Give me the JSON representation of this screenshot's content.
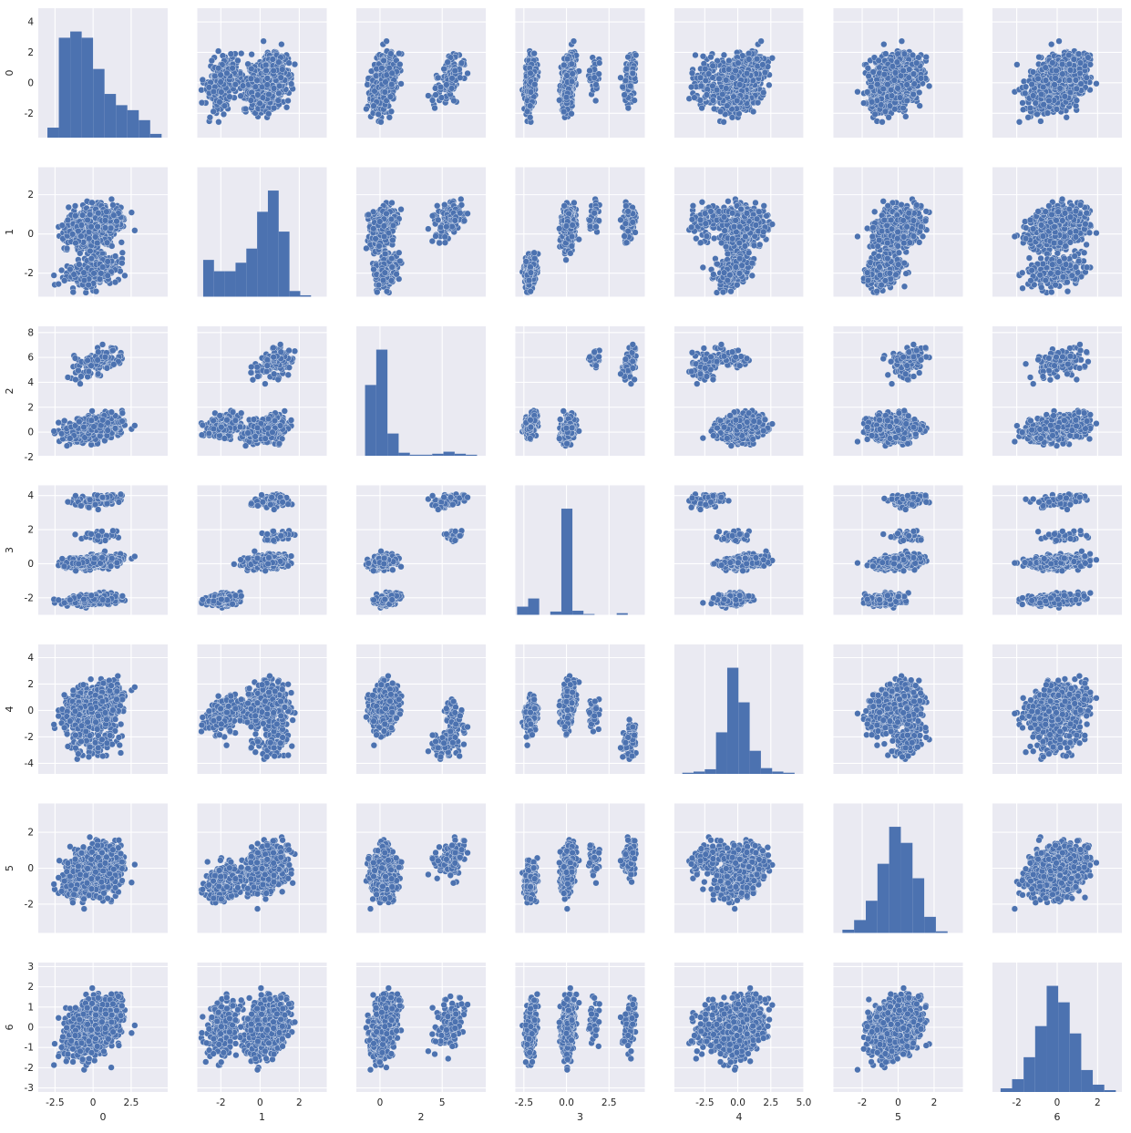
{
  "chart_data": {
    "type": "scatter",
    "subtype": "pairplot",
    "title": "",
    "variables": [
      "0",
      "1",
      "2",
      "3",
      "4",
      "5",
      "6"
    ],
    "marker_color": "#4c72b0",
    "background_color": "#eaeaf2",
    "grid": true,
    "diagonal": "histogram",
    "axes": [
      {
        "label": "0",
        "range": [
          -3.6,
          4.9
        ],
        "x_ticks": [
          "-2.5",
          "0",
          "2.5"
        ],
        "y_ticks": [
          "-2",
          "0",
          "2",
          "4"
        ]
      },
      {
        "label": "1",
        "range": [
          -3.2,
          3.4
        ],
        "x_ticks": [
          "-2",
          "0",
          "2"
        ],
        "y_ticks": [
          "-2",
          "0",
          "2"
        ]
      },
      {
        "label": "2",
        "range": [
          -1.9,
          8.5
        ],
        "x_ticks": [
          "0",
          "5"
        ],
        "y_ticks": [
          "-2",
          "0",
          "2",
          "4",
          "6",
          "8"
        ]
      },
      {
        "label": "3",
        "range": [
          -3.0,
          4.6
        ],
        "x_ticks": [
          "-2.5",
          "0.0",
          "2.5"
        ],
        "y_ticks": [
          "-2",
          "0",
          "2",
          "4"
        ]
      },
      {
        "label": "4",
        "range": [
          -4.8,
          5.0
        ],
        "x_ticks": [
          "-2.5",
          "0.0",
          "2.5",
          "5.0"
        ],
        "y_ticks": [
          "-4",
          "-2",
          "0",
          "2",
          "4"
        ]
      },
      {
        "label": "5",
        "range": [
          -3.6,
          3.6
        ],
        "x_ticks": [
          "-2",
          "0",
          "2"
        ],
        "y_ticks": [
          "-2",
          "0",
          "2"
        ]
      },
      {
        "label": "6",
        "range": [
          -3.2,
          3.2
        ],
        "x_ticks": [
          "-2",
          "0",
          "2"
        ],
        "y_ticks": [
          "-3",
          "-2",
          "-1",
          "0",
          "1",
          "2",
          "3"
        ]
      }
    ],
    "histograms": [
      {
        "variable": "0",
        "bin_edges": [
          -3.0,
          -2.25,
          -1.5,
          -0.75,
          0.0,
          0.75,
          1.5,
          2.25,
          3.0,
          3.75,
          4.5
        ],
        "counts": [
          8,
          80,
          85,
          80,
          55,
          35,
          26,
          22,
          14,
          3
        ]
      },
      {
        "variable": "1",
        "bin_edges": [
          -2.9,
          -2.35,
          -1.8,
          -1.25,
          -0.7,
          -0.15,
          0.4,
          0.95,
          1.5,
          2.05,
          2.6
        ],
        "counts": [
          26,
          18,
          18,
          24,
          34,
          60,
          75,
          46,
          4,
          1
        ]
      },
      {
        "variable": "2",
        "bin_edges": [
          -1.2,
          -0.3,
          0.6,
          1.5,
          2.4,
          3.3,
          4.2,
          5.1,
          6.0,
          6.9,
          7.8
        ],
        "counts": [
          70,
          105,
          22,
          3,
          1,
          1,
          2,
          4,
          2,
          1
        ]
      },
      {
        "variable": "3",
        "bin_edges": [
          -2.9,
          -2.25,
          -1.6,
          -0.95,
          -0.3,
          0.35,
          1.0,
          1.65,
          2.3,
          2.95,
          3.6
        ],
        "counts": [
          10,
          20,
          0,
          4,
          130,
          5,
          1,
          0,
          0,
          2
        ]
      },
      {
        "variable": "4",
        "bin_edges": [
          -4.2,
          -3.35,
          -2.5,
          -1.65,
          -0.8,
          0.05,
          0.9,
          1.75,
          2.6,
          3.45,
          4.3
        ],
        "counts": [
          1,
          2,
          4,
          36,
          92,
          62,
          20,
          5,
          2,
          1
        ]
      },
      {
        "variable": "5",
        "bin_edges": [
          -3.1,
          -2.45,
          -1.8,
          -1.15,
          -0.5,
          0.15,
          0.8,
          1.45,
          2.1,
          2.75,
          3.4
        ],
        "counts": [
          2,
          8,
          20,
          43,
          66,
          56,
          34,
          10,
          1,
          0
        ]
      },
      {
        "variable": "6",
        "bin_edges": [
          -2.8,
          -2.23,
          -1.66,
          -1.09,
          -0.52,
          0.05,
          0.62,
          1.19,
          1.76,
          2.33,
          2.9
        ],
        "counts": [
          2,
          7,
          19,
          36,
          58,
          49,
          32,
          12,
          4,
          1
        ]
      }
    ]
  }
}
